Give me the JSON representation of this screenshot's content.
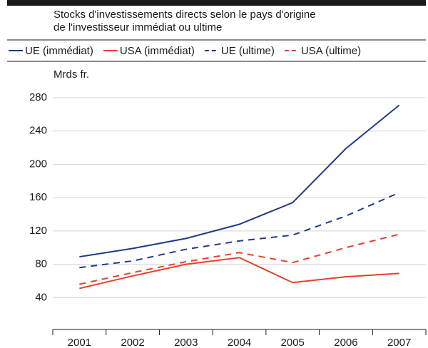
{
  "chart_data": {
    "type": "line",
    "title": [
      "Stocks d'investissements directs selon le pays d'origine",
      "de l'investisseur immédiat ou ultime"
    ],
    "ylabel": "Mrds fr.",
    "categories": [
      "2001",
      "2002",
      "2003",
      "2004",
      "2005",
      "2006",
      "2007"
    ],
    "series": [
      {
        "name": "UE (immédiat)",
        "color": "#1f3b8c",
        "dashed": false,
        "values": [
          89,
          99,
          111,
          128,
          154,
          219,
          271
        ]
      },
      {
        "name": "USA (immédiat)",
        "color": "#e6402a",
        "dashed": false,
        "values": [
          51,
          66,
          80,
          88,
          58,
          65,
          69
        ]
      },
      {
        "name": "UE (ultime)",
        "color": "#1f3b8c",
        "dashed": true,
        "values": [
          76,
          84,
          98,
          108,
          115,
          138,
          166
        ]
      },
      {
        "name": "USA (ultime)",
        "color": "#e6402a",
        "dashed": true,
        "values": [
          56,
          70,
          83,
          94,
          82,
          100,
          116
        ]
      }
    ],
    "ylim": [
      0,
      280
    ],
    "yticks": [
      40,
      80,
      120,
      160,
      200,
      240,
      280
    ],
    "grid": true
  }
}
